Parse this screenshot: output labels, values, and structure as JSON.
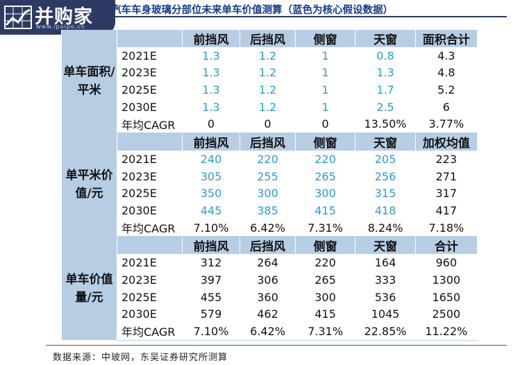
{
  "logo": {
    "brand": "并购家",
    "url": "www.ipoipo.cn"
  },
  "title": "汽车车身玻璃分部位未来单车价值测算（蓝色为核心假设数据）",
  "sections": [
    {
      "label": "单车面积/平米",
      "headers": [
        "前挡风",
        "后挡风",
        "侧窗",
        "天窗",
        "面积合计"
      ],
      "rows": [
        {
          "year": "2021E",
          "cells": [
            "1.3",
            "1.2",
            "1",
            "0.8",
            "4.3"
          ]
        },
        {
          "year": "2023E",
          "cells": [
            "1.3",
            "1.2",
            "1",
            "1.3",
            "4.8"
          ]
        },
        {
          "year": "2025E",
          "cells": [
            "1.3",
            "1.2",
            "1",
            "1.7",
            "5.2"
          ]
        },
        {
          "year": "2030E",
          "cells": [
            "1.3",
            "1.2",
            "1",
            "2.5",
            "6"
          ]
        },
        {
          "year": "年均CAGR",
          "cells": [
            "0",
            "0",
            "0",
            "13.50%",
            "3.77%"
          ]
        }
      ]
    },
    {
      "label": "单平米价值/元",
      "headers": [
        "前挡风",
        "后挡风",
        "侧窗",
        "天窗",
        "加权均值"
      ],
      "rows": [
        {
          "year": "2021E",
          "cells": [
            "240",
            "220",
            "220",
            "205",
            "223"
          ]
        },
        {
          "year": "2023E",
          "cells": [
            "305",
            "255",
            "265",
            "256",
            "271"
          ]
        },
        {
          "year": "2025E",
          "cells": [
            "350",
            "300",
            "300",
            "315",
            "317"
          ]
        },
        {
          "year": "2030E",
          "cells": [
            "445",
            "385",
            "415",
            "418",
            "417"
          ]
        },
        {
          "year": "年均CAGR",
          "cells": [
            "7.10%",
            "6.42%",
            "7.31%",
            "8.24%",
            "7.18%"
          ]
        }
      ]
    },
    {
      "label": "单车价值量/元",
      "headers": [
        "前挡风",
        "后挡风",
        "侧窗",
        "天窗",
        "合计"
      ],
      "rows": [
        {
          "year": "2021E",
          "cells": [
            "312",
            "264",
            "220",
            "164",
            "960"
          ]
        },
        {
          "year": "2023E",
          "cells": [
            "397",
            "306",
            "265",
            "333",
            "1300"
          ]
        },
        {
          "year": "2025E",
          "cells": [
            "455",
            "360",
            "300",
            "536",
            "1650"
          ]
        },
        {
          "year": "2030E",
          "cells": [
            "579",
            "462",
            "415",
            "1045",
            "2500"
          ]
        },
        {
          "year": "年均CAGR",
          "cells": [
            "7.10%",
            "6.42%",
            "7.31%",
            "22.85%",
            "11.22%"
          ]
        }
      ]
    }
  ],
  "source": "数据来源：中玻网，东吴证券研究所测算"
}
